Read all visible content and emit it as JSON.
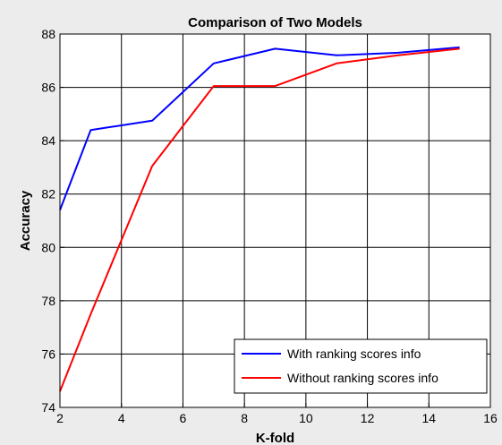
{
  "chart_data": {
    "type": "line",
    "title": "Comparison of Two Models",
    "xlabel": "K-fold",
    "ylabel": "Accuracy",
    "xlim": [
      2,
      16
    ],
    "ylim": [
      74,
      88
    ],
    "xticks": [
      2,
      4,
      6,
      8,
      10,
      12,
      14,
      16
    ],
    "yticks": [
      74,
      76,
      78,
      80,
      82,
      84,
      86,
      88
    ],
    "grid": true,
    "legend_position": "bottom-right",
    "series": [
      {
        "name": "With ranking scores info",
        "color": "#0000ff",
        "x": [
          2,
          3,
          5,
          7,
          9,
          11,
          13,
          15
        ],
        "y": [
          81.4,
          84.4,
          84.75,
          86.9,
          87.45,
          87.2,
          87.3,
          87.5
        ]
      },
      {
        "name": "Without ranking scores info",
        "color": "#ff0000",
        "x": [
          2,
          3,
          5,
          7,
          9,
          11,
          13,
          15
        ],
        "y": [
          74.6,
          77.5,
          83.05,
          86.05,
          86.05,
          86.9,
          87.2,
          87.45
        ]
      }
    ]
  }
}
